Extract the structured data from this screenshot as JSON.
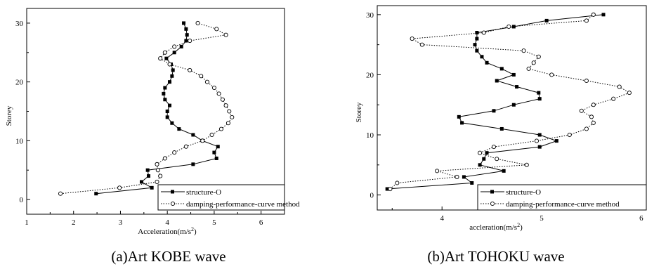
{
  "chart_data": [
    {
      "type": "line",
      "caption": "(a)Art KOBE wave",
      "xlabel": "Acceleration(m/s",
      "xlabel_sup": "2",
      "xlabel_tail": ")",
      "ylabel": "Storey",
      "xlim": [
        1,
        6.5
      ],
      "ylim": [
        -2.5,
        32.5
      ],
      "xticks": [
        1,
        2,
        3,
        4,
        5,
        6
      ],
      "yticks": [
        0,
        10,
        20,
        30
      ],
      "legend_position": "bottom-right",
      "series": [
        {
          "name": "structure-O",
          "style": "solid-square",
          "points": [
            [
              2.48,
              1
            ],
            [
              3.67,
              2
            ],
            [
              3.45,
              3
            ],
            [
              3.6,
              4
            ],
            [
              3.58,
              5
            ],
            [
              4.55,
              6
            ],
            [
              5.05,
              7
            ],
            [
              5.0,
              8
            ],
            [
              5.08,
              9
            ],
            [
              4.75,
              10
            ],
            [
              4.55,
              11
            ],
            [
              4.25,
              12
            ],
            [
              4.1,
              13
            ],
            [
              4.0,
              14
            ],
            [
              4.0,
              15
            ],
            [
              4.05,
              16
            ],
            [
              3.95,
              17
            ],
            [
              3.92,
              18
            ],
            [
              3.95,
              19
            ],
            [
              4.05,
              20
            ],
            [
              4.1,
              21
            ],
            [
              4.12,
              22
            ],
            [
              4.08,
              23
            ],
            [
              3.98,
              24
            ],
            [
              4.15,
              25
            ],
            [
              4.3,
              26
            ],
            [
              4.4,
              27
            ],
            [
              4.42,
              28
            ],
            [
              4.4,
              29
            ],
            [
              4.35,
              30
            ]
          ]
        },
        {
          "name": "damping-performance-curve method",
          "style": "dotted-circle",
          "points": [
            [
              1.72,
              1
            ],
            [
              2.98,
              2
            ],
            [
              3.78,
              3
            ],
            [
              3.85,
              4
            ],
            [
              3.8,
              5
            ],
            [
              3.78,
              6
            ],
            [
              3.95,
              7
            ],
            [
              4.15,
              8
            ],
            [
              4.4,
              9
            ],
            [
              4.75,
              10
            ],
            [
              4.95,
              11
            ],
            [
              5.15,
              12
            ],
            [
              5.3,
              13
            ],
            [
              5.38,
              14
            ],
            [
              5.32,
              15
            ],
            [
              5.25,
              16
            ],
            [
              5.18,
              17
            ],
            [
              5.1,
              18
            ],
            [
              5.0,
              19
            ],
            [
              4.85,
              20
            ],
            [
              4.72,
              21
            ],
            [
              4.48,
              22
            ],
            [
              4.05,
              23
            ],
            [
              3.85,
              24
            ],
            [
              3.95,
              25
            ],
            [
              4.15,
              26
            ],
            [
              4.48,
              27
            ],
            [
              5.25,
              28
            ],
            [
              5.05,
              29
            ],
            [
              4.65,
              30
            ]
          ]
        }
      ]
    },
    {
      "type": "line",
      "caption": "(b)Art TOHOKU wave",
      "xlabel": "accleration(m/s",
      "xlabel_sup": "2",
      "xlabel_tail": ")",
      "ylabel": "Storey",
      "xlim": [
        3.35,
        6.05
      ],
      "ylim": [
        -2.5,
        31.5
      ],
      "xticks": [
        4,
        5,
        6
      ],
      "yticks": [
        0,
        10,
        20,
        30
      ],
      "legend_position": "bottom-right",
      "series": [
        {
          "name": "structure-O",
          "style": "solid-square",
          "points": [
            [
              3.45,
              1
            ],
            [
              4.3,
              2
            ],
            [
              4.22,
              3
            ],
            [
              4.62,
              4
            ],
            [
              4.38,
              5
            ],
            [
              4.42,
              6
            ],
            [
              4.45,
              7
            ],
            [
              4.98,
              8
            ],
            [
              5.15,
              9
            ],
            [
              4.98,
              10
            ],
            [
              4.6,
              11
            ],
            [
              4.2,
              12
            ],
            [
              4.17,
              13
            ],
            [
              4.52,
              14
            ],
            [
              4.72,
              15
            ],
            [
              4.98,
              16
            ],
            [
              4.97,
              17
            ],
            [
              4.75,
              18
            ],
            [
              4.55,
              19
            ],
            [
              4.72,
              20
            ],
            [
              4.6,
              21
            ],
            [
              4.45,
              22
            ],
            [
              4.4,
              23
            ],
            [
              4.35,
              24
            ],
            [
              4.33,
              25
            ],
            [
              4.35,
              26
            ],
            [
              4.35,
              27
            ],
            [
              4.72,
              28
            ],
            [
              5.05,
              29
            ],
            [
              5.62,
              30
            ]
          ]
        },
        {
          "name": "damping-performance-curve method",
          "style": "dotted-circle",
          "points": [
            [
              3.48,
              1
            ],
            [
              3.55,
              2
            ],
            [
              4.15,
              3
            ],
            [
              3.95,
              4
            ],
            [
              4.85,
              5
            ],
            [
              4.55,
              6
            ],
            [
              4.38,
              7
            ],
            [
              4.52,
              8
            ],
            [
              4.95,
              9
            ],
            [
              5.28,
              10
            ],
            [
              5.45,
              11
            ],
            [
              5.52,
              12
            ],
            [
              5.5,
              13
            ],
            [
              5.4,
              14
            ],
            [
              5.52,
              15
            ],
            [
              5.72,
              16
            ],
            [
              5.88,
              17
            ],
            [
              5.78,
              18
            ],
            [
              5.45,
              19
            ],
            [
              5.1,
              20
            ],
            [
              4.87,
              21
            ],
            [
              4.92,
              22
            ],
            [
              4.97,
              23
            ],
            [
              4.82,
              24
            ],
            [
              3.8,
              25
            ],
            [
              3.7,
              26
            ],
            [
              4.42,
              27
            ],
            [
              4.67,
              28
            ],
            [
              5.45,
              29
            ],
            [
              5.52,
              30
            ]
          ]
        }
      ]
    }
  ]
}
